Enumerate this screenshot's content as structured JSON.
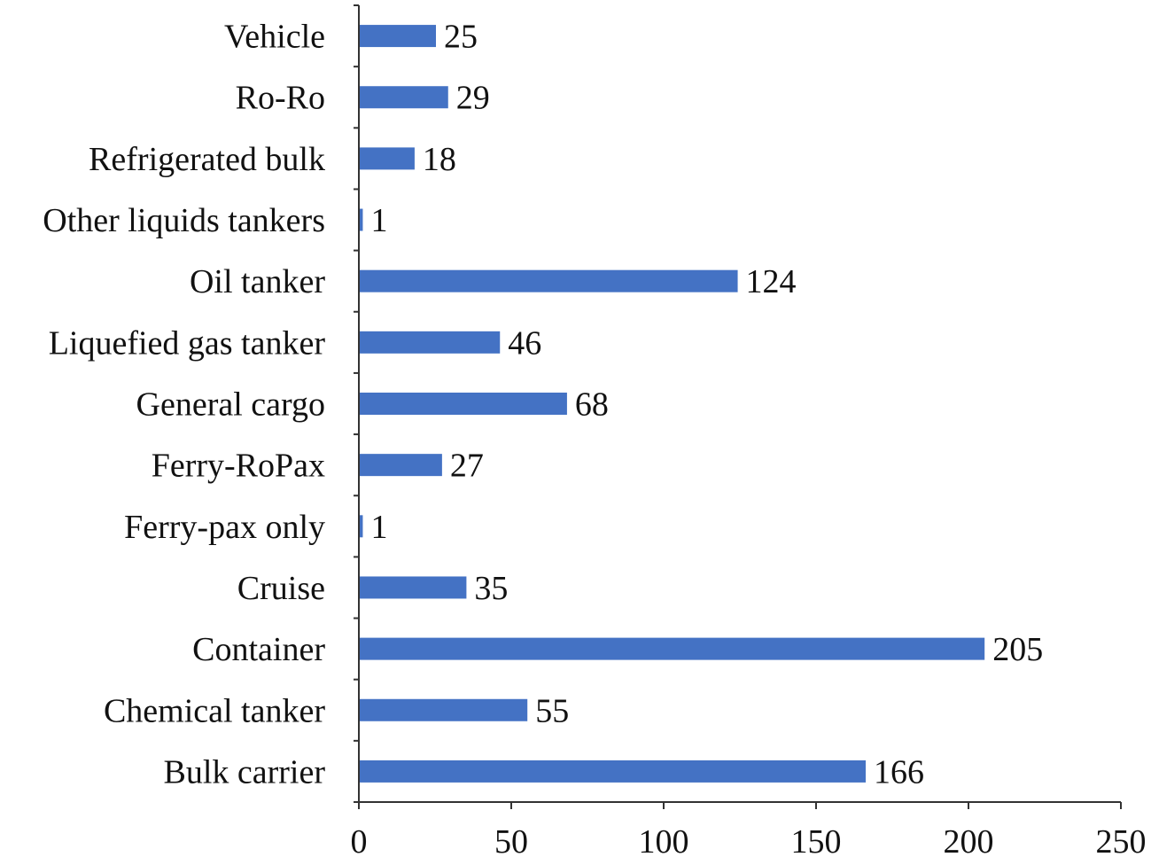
{
  "chart_data": {
    "type": "bar",
    "orientation": "horizontal",
    "categories": [
      "Vehicle",
      "Ro-Ro",
      "Refrigerated bulk",
      "Other liquids tankers",
      "Oil tanker",
      "Liquefied gas tanker",
      "General cargo",
      "Ferry-RoPax",
      "Ferry-pax only",
      "Cruise",
      "Container",
      "Chemical tanker",
      "Bulk carrier"
    ],
    "values": [
      25,
      29,
      18,
      1,
      124,
      46,
      68,
      27,
      1,
      35,
      205,
      55,
      166
    ],
    "value_labels": [
      "25",
      "29",
      "18",
      "1",
      "124",
      "46",
      "68",
      "27",
      "1",
      "35",
      "205",
      "55",
      "166"
    ],
    "xlim": [
      0,
      250
    ],
    "xticks": [
      0,
      50,
      100,
      150,
      200,
      250
    ],
    "xtick_labels": [
      "0",
      "50",
      "100",
      "150",
      "200",
      "250"
    ],
    "title": "",
    "xlabel": "",
    "ylabel": "",
    "grid": false,
    "legend": "none",
    "bar_color": "#4472C4"
  }
}
